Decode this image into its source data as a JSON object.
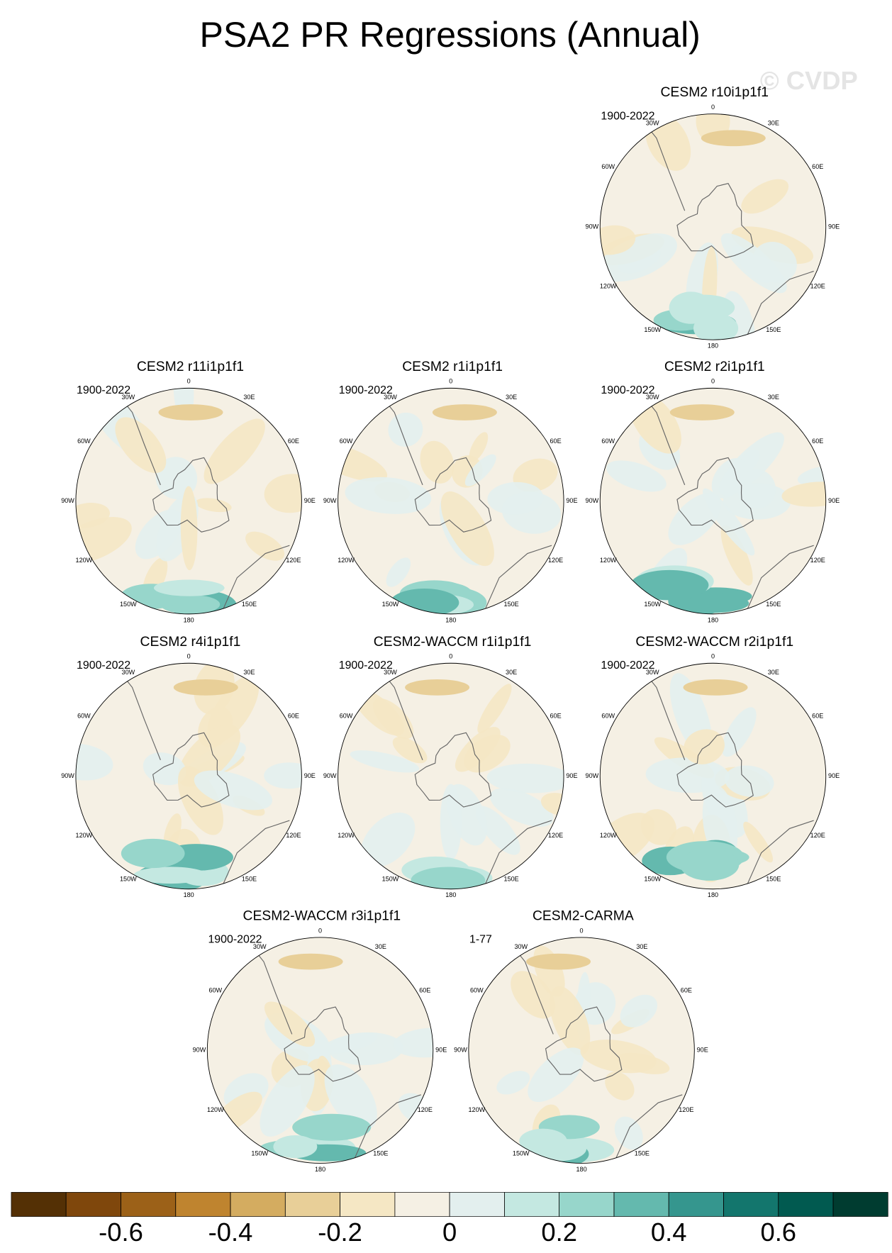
{
  "title": "PSA2 PR Regressions (Annual)",
  "watermark": "© CVDP",
  "lon_labels": [
    "0",
    "30E",
    "60E",
    "90E",
    "120E",
    "150E",
    "180",
    "150W",
    "120W",
    "90W",
    "60W",
    "30W"
  ],
  "panels": [
    {
      "title": "CESM2 r10i1p1f1",
      "period": "1900-2022"
    },
    {
      "title": "CESM2 r11i1p1f1",
      "period": "1900-2022"
    },
    {
      "title": "CESM2 r1i1p1f1",
      "period": "1900-2022"
    },
    {
      "title": "CESM2 r2i1p1f1",
      "period": "1900-2022"
    },
    {
      "title": "CESM2 r4i1p1f1",
      "period": "1900-2022"
    },
    {
      "title": "CESM2-WACCM r1i1p1f1",
      "period": "1900-2022"
    },
    {
      "title": "CESM2-WACCM r2i1p1f1",
      "period": "1900-2022"
    },
    {
      "title": "CESM2-WACCM r3i1p1f1",
      "period": "1900-2022"
    },
    {
      "title": "CESM2-CARMA",
      "period": "1-77"
    }
  ],
  "colorbar": {
    "colors": [
      "#543005",
      "#7f470c",
      "#9c6118",
      "#bf842f",
      "#d4ac60",
      "#e8cf98",
      "#f5e7c4",
      "#f5f0e4",
      "#e3efee",
      "#c4e8e1",
      "#97d6cb",
      "#64b9ae",
      "#35968e",
      "#13766d",
      "#015a50",
      "#003c30"
    ],
    "levels": [
      -0.7,
      -0.6,
      -0.5,
      -0.4,
      -0.3,
      -0.2,
      -0.1,
      0,
      0.1,
      0.2,
      0.3,
      0.4,
      0.5,
      0.6,
      0.7
    ],
    "ticks": [
      -0.6,
      -0.4,
      -0.2,
      0,
      0.2,
      0.4,
      0.6
    ]
  }
}
